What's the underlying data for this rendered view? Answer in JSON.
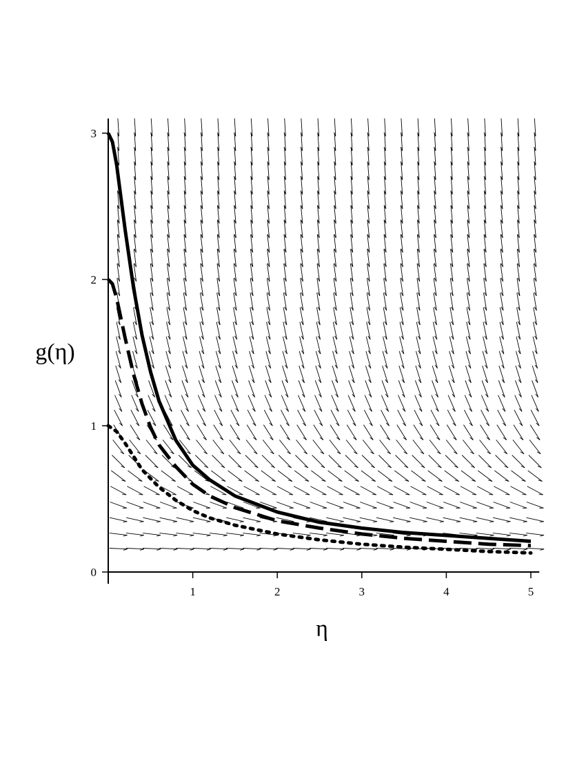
{
  "chart_data": {
    "type": "line",
    "xlabel": "η",
    "ylabel": "g(η)",
    "xlim": [
      0,
      5.1
    ],
    "ylim": [
      0,
      3.1
    ],
    "x_ticks": [
      "1",
      "2",
      "3",
      "4",
      "5"
    ],
    "y_ticks": [
      "0",
      "1",
      "2",
      "3"
    ],
    "x_tick_values": [
      1,
      2,
      3,
      4,
      5
    ],
    "y_tick_values": [
      0,
      1,
      2,
      3
    ],
    "grid": false,
    "direction_field": true,
    "series": [
      {
        "style": "solid",
        "x": [
          0,
          0.05,
          0.1,
          0.2,
          0.3,
          0.4,
          0.5,
          0.6,
          0.8,
          1,
          1.2,
          1.5,
          2,
          2.5,
          3,
          3.5,
          4,
          4.5,
          5
        ],
        "y": [
          3.0,
          2.94,
          2.78,
          2.34,
          1.94,
          1.62,
          1.37,
          1.17,
          0.9,
          0.73,
          0.63,
          0.52,
          0.41,
          0.34,
          0.3,
          0.27,
          0.25,
          0.23,
          0.21
        ]
      },
      {
        "style": "dashed",
        "x": [
          0,
          0.05,
          0.1,
          0.2,
          0.3,
          0.4,
          0.5,
          0.6,
          0.8,
          1,
          1.2,
          1.5,
          2,
          2.5,
          3,
          3.5,
          4,
          4.5,
          5
        ],
        "y": [
          2.0,
          1.97,
          1.87,
          1.6,
          1.35,
          1.15,
          0.99,
          0.87,
          0.72,
          0.6,
          0.52,
          0.44,
          0.35,
          0.3,
          0.26,
          0.23,
          0.21,
          0.19,
          0.18
        ]
      },
      {
        "style": "dotted",
        "x": [
          0,
          0.1,
          0.2,
          0.3,
          0.4,
          0.6,
          0.8,
          1,
          1.2,
          1.5,
          2,
          2.5,
          3,
          3.5,
          4,
          4.5,
          5
        ],
        "y": [
          1.0,
          0.96,
          0.88,
          0.79,
          0.7,
          0.58,
          0.49,
          0.42,
          0.37,
          0.32,
          0.26,
          0.22,
          0.19,
          0.17,
          0.155,
          0.14,
          0.13
        ]
      }
    ]
  }
}
